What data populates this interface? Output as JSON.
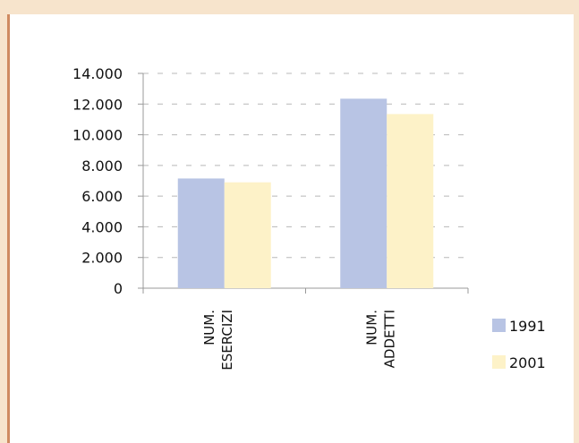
{
  "chart_data": {
    "type": "bar",
    "categories": [
      [
        "NUM.",
        "ESERCIZI"
      ],
      [
        "NUM.",
        "ADDETTI"
      ]
    ],
    "series": [
      {
        "name": "1991",
        "values": [
          7150,
          12350
        ],
        "color": "#b8c4e4"
      },
      {
        "name": "2001",
        "values": [
          6900,
          11350
        ],
        "color": "#fdf2c8"
      }
    ],
    "yticks": [
      "0",
      "2.000",
      "4.000",
      "6.000",
      "8.000",
      "10.000",
      "12.000",
      "14.000"
    ],
    "ylim": [
      0,
      14000
    ],
    "grid": true,
    "legend_position": "right",
    "title": "",
    "xlabel": "",
    "ylabel": ""
  }
}
